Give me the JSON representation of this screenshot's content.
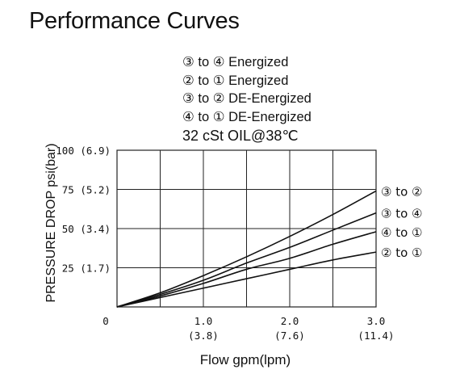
{
  "title": "Performance Curves",
  "legend_lines": [
    "③ to ④ Energized",
    "② to ① Energized",
    "③ to ② DE-Energized",
    "④ to ① DE-Energized"
  ],
  "oil_condition": "32 cSt OIL@38℃",
  "chart_data": {
    "type": "line",
    "xlabel": "Flow gpm(lpm)",
    "ylabel": "PRESSURE DROP psi(bar)",
    "xlim": [
      0,
      3.0
    ],
    "ylim": [
      0,
      100
    ],
    "grid": true,
    "x_ticks": [
      {
        "value": 0,
        "label": "0",
        "sub": ""
      },
      {
        "value": 1.0,
        "label": "1.0",
        "sub": "(3.8)"
      },
      {
        "value": 2.0,
        "label": "2.0",
        "sub": "(7.6)"
      },
      {
        "value": 3.0,
        "label": "3.0",
        "sub": "(11.4)"
      }
    ],
    "y_ticks": [
      {
        "value": 25,
        "label": "25 (1.7)"
      },
      {
        "value": 50,
        "label": "50 (3.4)"
      },
      {
        "value": 75,
        "label": "75 (5.2)"
      },
      {
        "value": 100,
        "label": "100 (6.9)"
      }
    ],
    "x": [
      0,
      0.5,
      1.0,
      1.5,
      2.0,
      2.5,
      3.0
    ],
    "series": [
      {
        "name": "③ to ②",
        "values": [
          0,
          9,
          20,
          32,
          45,
          59,
          74
        ]
      },
      {
        "name": "③ to ④",
        "values": [
          0,
          8,
          17,
          28,
          38,
          49,
          60
        ]
      },
      {
        "name": "④ to ①",
        "values": [
          0,
          7,
          15,
          24,
          31,
          40,
          48
        ]
      },
      {
        "name": "② to ①",
        "values": [
          0,
          6,
          12,
          18,
          24,
          30,
          35
        ]
      }
    ]
  }
}
